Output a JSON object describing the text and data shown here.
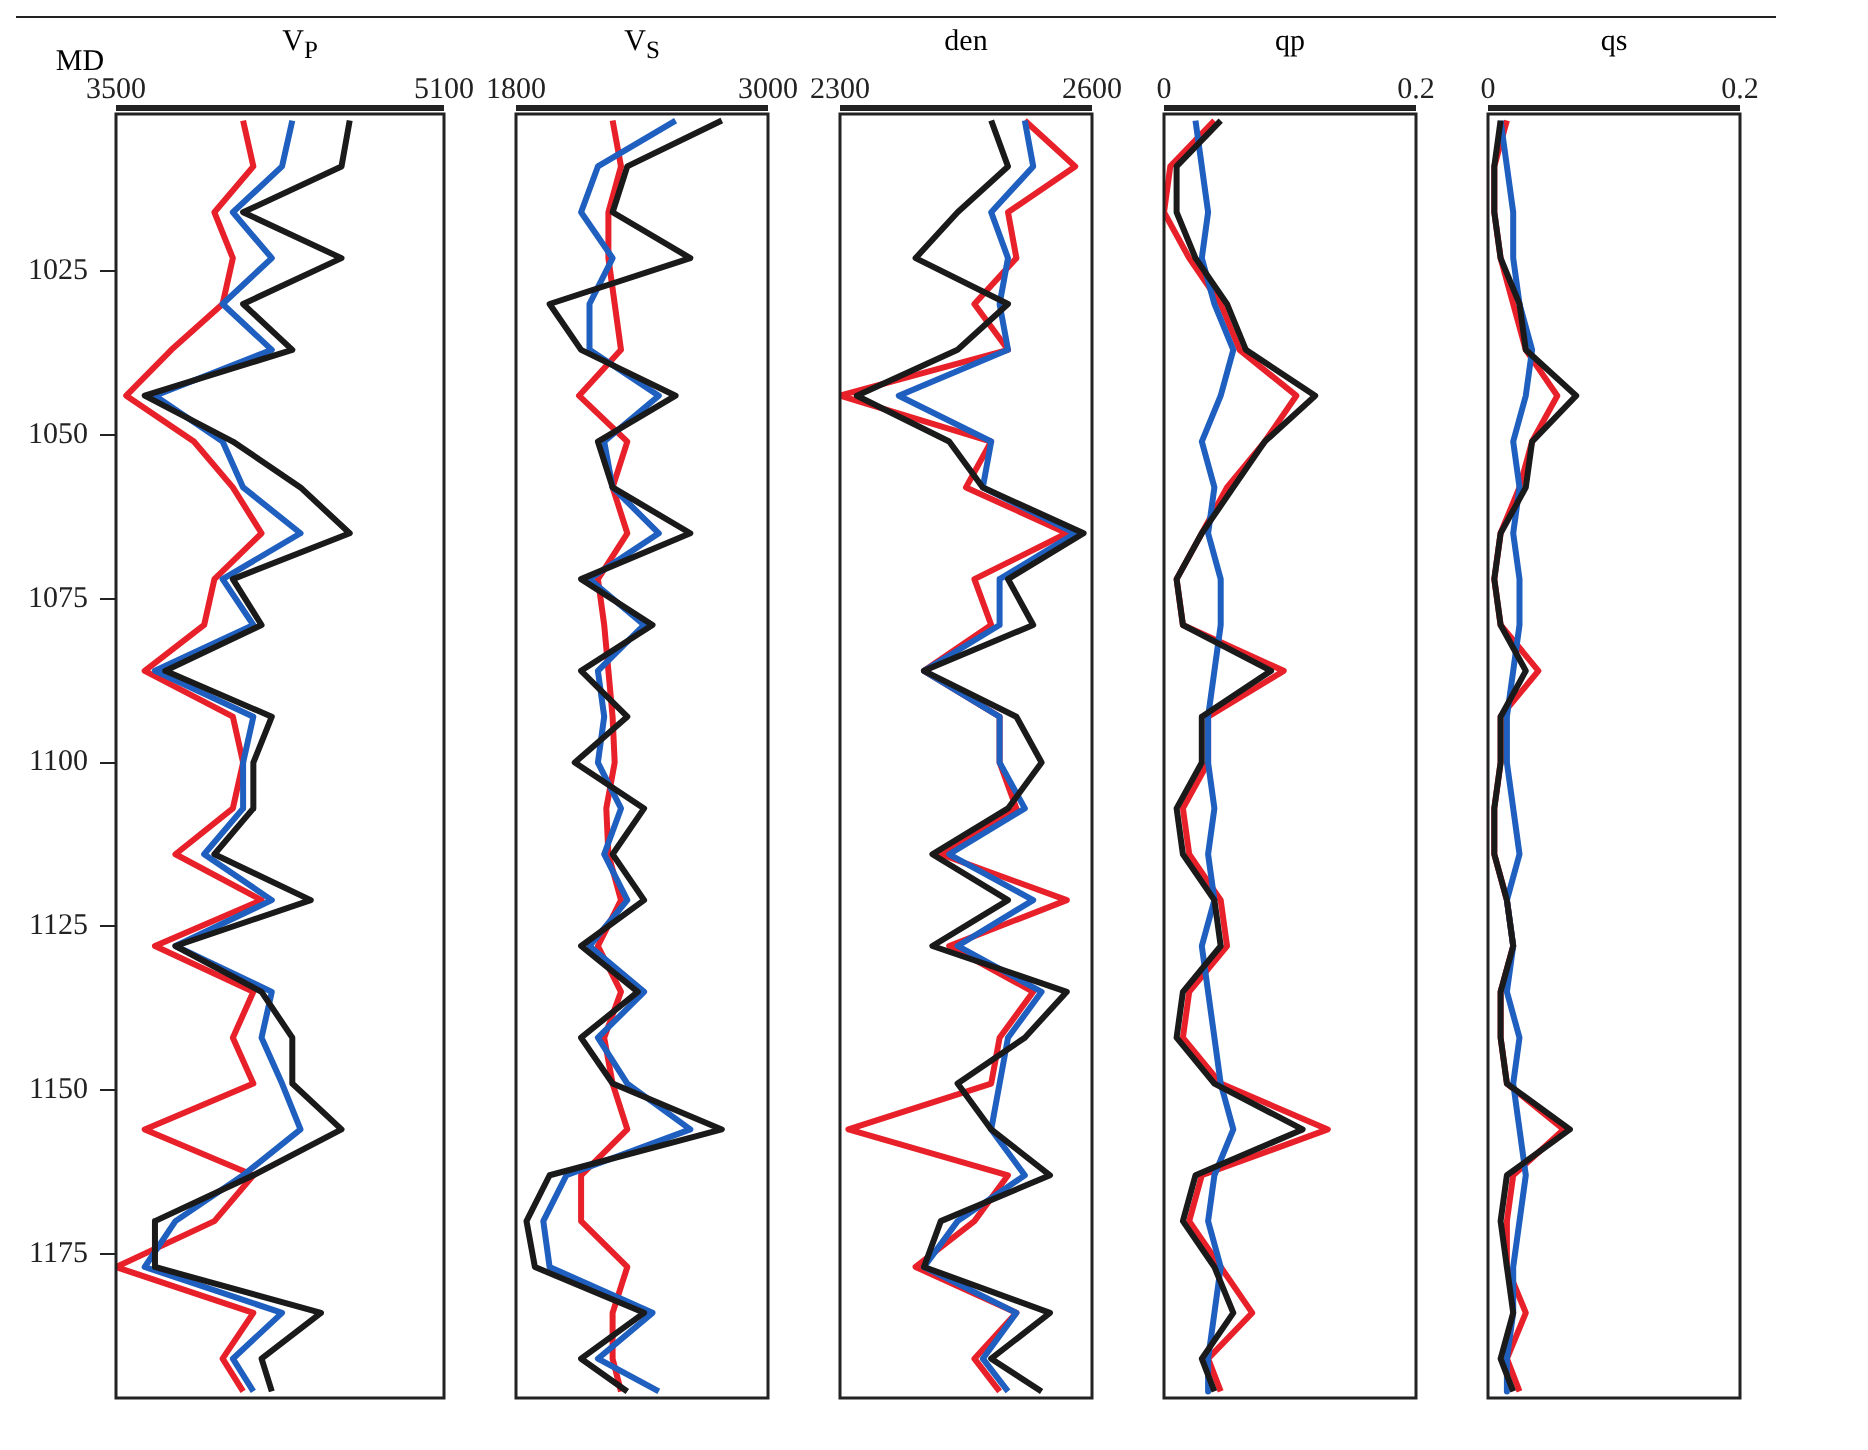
{
  "chart_data": [
    {
      "type": "line",
      "ylabel": "MD",
      "xlabel": "V$_{P}$",
      "xlim": [
        3500,
        5100
      ],
      "xticks": [
        3500,
        5100
      ],
      "ylim": [
        1197,
        1001
      ],
      "yticks": [
        1025,
        1050,
        1075,
        1100,
        1125,
        1150,
        1175
      ],
      "grid": false,
      "legend": false,
      "marker": "none",
      "line_style": "solid",
      "series": [
        {
          "color": "#1a1a1a",
          "values": [
            1002,
            1009,
            1016,
            1023,
            1030,
            1037,
            1044,
            1051,
            1058,
            1065,
            1072,
            1079,
            1086,
            1093,
            1100,
            1107,
            1114,
            1121,
            1128,
            1135,
            1142,
            1149,
            1156,
            1163,
            1170,
            1177,
            1184,
            1191,
            1196
          ],
          "x": [
            4640,
            4600,
            4120,
            4600,
            4120,
            4360,
            3640,
            4070,
            4400,
            4640,
            4070,
            4210,
            3740,
            4260,
            4170,
            4170,
            3980,
            4450,
            3790,
            4210,
            4360,
            4360,
            4600,
            4170,
            3690,
            3690,
            4500,
            4210,
            4260
          ]
        },
        {
          "color": "#1f5fbf",
          "values": [
            1002,
            1009,
            1016,
            1023,
            1030,
            1037,
            1044,
            1051,
            1058,
            1065,
            1072,
            1079,
            1086,
            1093,
            1100,
            1107,
            1114,
            1121,
            1128,
            1135,
            1142,
            1149,
            1156,
            1163,
            1170,
            1177,
            1184,
            1191,
            1196
          ],
          "x": [
            4360,
            4310,
            4070,
            4260,
            4020,
            4260,
            3690,
            4020,
            4120,
            4400,
            4020,
            4170,
            3690,
            4170,
            4120,
            4120,
            3930,
            4260,
            3790,
            4260,
            4210,
            4310,
            4400,
            4120,
            3790,
            3640,
            4310,
            4070,
            4170
          ]
        },
        {
          "color": "#e8202a",
          "values": [
            1002,
            1009,
            1016,
            1023,
            1030,
            1037,
            1044,
            1051,
            1058,
            1065,
            1072,
            1079,
            1086,
            1093,
            1100,
            1107,
            1114,
            1121,
            1128,
            1135,
            1142,
            1149,
            1156,
            1163,
            1170,
            1177,
            1184,
            1191,
            1196
          ],
          "x": [
            4120,
            4170,
            3980,
            4070,
            4020,
            3770,
            3550,
            3880,
            4070,
            4210,
            3980,
            3930,
            3640,
            4070,
            4120,
            4070,
            3790,
            4210,
            3690,
            4170,
            4070,
            4170,
            3640,
            4170,
            3980,
            3500,
            4170,
            4020,
            4120
          ]
        }
      ]
    },
    {
      "type": "line",
      "xlabel": "V$_{S}$",
      "xlim": [
        1800,
        3000
      ],
      "xticks": [
        1800,
        3000
      ],
      "ylim": [
        1197,
        1001
      ],
      "yticks": [
        1025,
        1050,
        1075,
        1100,
        1125,
        1150,
        1175
      ],
      "tick_labels": "x",
      "grid": false,
      "legend": false,
      "marker": "none",
      "line_style": "solid",
      "series": [
        {
          "color": "#1a1a1a",
          "values": [
            1002,
            1009,
            1016,
            1023,
            1030,
            1037,
            1044,
            1051,
            1058,
            1065,
            1072,
            1079,
            1086,
            1093,
            1100,
            1107,
            1114,
            1121,
            1128,
            1135,
            1142,
            1149,
            1156,
            1163,
            1170,
            1177,
            1184,
            1191,
            1196
          ],
          "x": [
            2780,
            2330,
            2260,
            2630,
            1960,
            2110,
            2560,
            2190,
            2260,
            2630,
            2110,
            2450,
            2110,
            2330,
            2080,
            2410,
            2260,
            2410,
            2110,
            2380,
            2110,
            2260,
            2780,
            1960,
            1850,
            1890,
            2410,
            2110,
            2330
          ]
        },
        {
          "color": "#1f5fbf",
          "values": [
            1002,
            1009,
            1016,
            1023,
            1030,
            1037,
            1044,
            1051,
            1058,
            1065,
            1072,
            1079,
            1086,
            1093,
            1100,
            1107,
            1114,
            1121,
            1128,
            1135,
            1142,
            1149,
            1156,
            1163,
            1170,
            1177,
            1184,
            1191,
            1196
          ],
          "x": [
            2560,
            2190,
            2110,
            2260,
            2150,
            2150,
            2480,
            2220,
            2260,
            2480,
            2150,
            2410,
            2190,
            2220,
            2190,
            2300,
            2220,
            2330,
            2150,
            2410,
            2190,
            2330,
            2630,
            2040,
            1930,
            1960,
            2450,
            2190,
            2480
          ]
        },
        {
          "color": "#e8202a",
          "values": [
            1002,
            1009,
            1016,
            1023,
            1030,
            1037,
            1044,
            1051,
            1058,
            1065,
            1072,
            1079,
            1086,
            1093,
            1100,
            1107,
            1114,
            1121,
            1128,
            1135,
            1142,
            1149,
            1156,
            1163,
            1170,
            1177,
            1184,
            1191,
            1196
          ],
          "x": [
            2260,
            2300,
            2240,
            2240,
            2270,
            2300,
            2100,
            2330,
            2260,
            2330,
            2190,
            2220,
            2240,
            2260,
            2270,
            2230,
            2240,
            2300,
            2190,
            2300,
            2220,
            2260,
            2330,
            2110,
            2110,
            2330,
            2260,
            2260,
            2300
          ]
        }
      ]
    },
    {
      "type": "line",
      "xlabel": "den",
      "xlim": [
        2300,
        2600
      ],
      "xticks": [
        2300,
        2600
      ],
      "ylim": [
        1197,
        1001
      ],
      "yticks": [
        1025,
        1050,
        1075,
        1100,
        1125,
        1150,
        1175
      ],
      "tick_labels": "x",
      "grid": false,
      "legend": false,
      "marker": "none",
      "line_style": "solid",
      "series": [
        {
          "color": "#1a1a1a",
          "values": [
            1002,
            1009,
            1016,
            1023,
            1030,
            1037,
            1044,
            1051,
            1058,
            1065,
            1072,
            1079,
            1086,
            1093,
            1100,
            1107,
            1114,
            1121,
            1128,
            1135,
            1142,
            1149,
            1156,
            1163,
            1170,
            1177,
            1184,
            1191,
            1196
          ],
          "x": [
            2480,
            2500,
            2440,
            2390,
            2500,
            2440,
            2320,
            2430,
            2470,
            2590,
            2500,
            2530,
            2400,
            2510,
            2540,
            2500,
            2410,
            2500,
            2410,
            2570,
            2520,
            2440,
            2480,
            2550,
            2420,
            2400,
            2550,
            2480,
            2540
          ]
        },
        {
          "color": "#1f5fbf",
          "values": [
            1002,
            1009,
            1016,
            1023,
            1030,
            1037,
            1044,
            1051,
            1058,
            1065,
            1072,
            1079,
            1086,
            1093,
            1100,
            1107,
            1114,
            1121,
            1128,
            1135,
            1142,
            1149,
            1156,
            1163,
            1170,
            1177,
            1184,
            1191,
            1196
          ],
          "x": [
            2520,
            2530,
            2480,
            2500,
            2490,
            2500,
            2370,
            2480,
            2470,
            2580,
            2490,
            2490,
            2400,
            2490,
            2490,
            2520,
            2430,
            2530,
            2440,
            2540,
            2500,
            2490,
            2480,
            2520,
            2440,
            2400,
            2510,
            2470,
            2500
          ]
        },
        {
          "color": "#e8202a",
          "values": [
            1002,
            1009,
            1016,
            1023,
            1030,
            1037,
            1044,
            1051,
            1058,
            1065,
            1072,
            1079,
            1086,
            1093,
            1100,
            1107,
            1114,
            1121,
            1128,
            1135,
            1142,
            1149,
            1156,
            1163,
            1170,
            1177,
            1184,
            1191,
            1196
          ],
          "x": [
            2520,
            2580,
            2500,
            2510,
            2460,
            2500,
            2300,
            2480,
            2450,
            2570,
            2460,
            2480,
            2400,
            2490,
            2490,
            2510,
            2420,
            2570,
            2430,
            2530,
            2490,
            2480,
            2310,
            2500,
            2460,
            2390,
            2510,
            2460,
            2490
          ]
        }
      ]
    },
    {
      "type": "line",
      "xlabel": "qp",
      "xlim": [
        0,
        0.2
      ],
      "xticks": [
        0,
        0.2
      ],
      "ylim": [
        1197,
        1001
      ],
      "yticks": [
        1025,
        1050,
        1075,
        1100,
        1125,
        1150,
        1175
      ],
      "tick_labels": "x",
      "grid": false,
      "legend": false,
      "marker": "none",
      "line_style": "solid",
      "series": [
        {
          "color": "#1a1a1a",
          "values": [
            1002,
            1009,
            1016,
            1023,
            1030,
            1037,
            1044,
            1051,
            1058,
            1065,
            1072,
            1079,
            1086,
            1093,
            1100,
            1107,
            1114,
            1121,
            1128,
            1135,
            1142,
            1149,
            1156,
            1163,
            1170,
            1177,
            1184,
            1191,
            1196
          ],
          "x": [
            0.045,
            0.01,
            0.01,
            0.025,
            0.05,
            0.065,
            0.12,
            0.08,
            0.055,
            0.03,
            0.01,
            0.015,
            0.085,
            0.03,
            0.03,
            0.01,
            0.015,
            0.04,
            0.045,
            0.015,
            0.01,
            0.04,
            0.11,
            0.025,
            0.015,
            0.04,
            0.055,
            0.03,
            0.04
          ]
        },
        {
          "color": "#1f5fbf",
          "values": [
            1002,
            1009,
            1016,
            1023,
            1030,
            1037,
            1044,
            1051,
            1058,
            1065,
            1072,
            1079,
            1086,
            1093,
            1100,
            1107,
            1114,
            1121,
            1128,
            1135,
            1142,
            1149,
            1156,
            1163,
            1170,
            1177,
            1184,
            1191,
            1196
          ],
          "x": [
            0.025,
            0.03,
            0.035,
            0.03,
            0.04,
            0.055,
            0.045,
            0.03,
            0.04,
            0.035,
            0.045,
            0.045,
            0.04,
            0.035,
            0.035,
            0.04,
            0.035,
            0.04,
            0.03,
            0.035,
            0.04,
            0.045,
            0.055,
            0.04,
            0.035,
            0.045,
            0.04,
            0.035,
            0.035
          ]
        },
        {
          "color": "#e8202a",
          "values": [
            1002,
            1009,
            1016,
            1023,
            1030,
            1037,
            1044,
            1051,
            1058,
            1065,
            1072,
            1079,
            1086,
            1093,
            1100,
            1107,
            1114,
            1121,
            1128,
            1135,
            1142,
            1149,
            1156,
            1163,
            1170,
            1177,
            1184,
            1191,
            1196
          ],
          "x": [
            0.04,
            0.005,
            0,
            0.02,
            0.045,
            0.06,
            0.105,
            0.08,
            0.05,
            0.03,
            0.01,
            0.015,
            0.095,
            0.035,
            0.035,
            0.015,
            0.02,
            0.045,
            0.05,
            0.02,
            0.015,
            0.045,
            0.13,
            0.03,
            0.02,
            0.045,
            0.07,
            0.035,
            0.045
          ]
        }
      ]
    },
    {
      "type": "line",
      "xlabel": "qs",
      "xlim": [
        0,
        0.2
      ],
      "xticks": [
        0,
        0.2
      ],
      "ylim": [
        1197,
        1001
      ],
      "yticks": [
        1025,
        1050,
        1075,
        1100,
        1125,
        1150,
        1175
      ],
      "tick_labels": "x",
      "grid": false,
      "legend": false,
      "marker": "none",
      "line_style": "solid",
      "series": [
        {
          "color": "#1a1a1a",
          "values": [
            1002,
            1009,
            1016,
            1023,
            1030,
            1037,
            1044,
            1051,
            1058,
            1065,
            1072,
            1079,
            1086,
            1093,
            1100,
            1107,
            1114,
            1121,
            1128,
            1135,
            1142,
            1149,
            1156,
            1163,
            1170,
            1177,
            1184,
            1191,
            1196
          ],
          "x": [
            0.01,
            0.005,
            0.005,
            0.01,
            0.025,
            0.03,
            0.07,
            0.035,
            0.03,
            0.01,
            0.005,
            0.01,
            0.03,
            0.01,
            0.01,
            0.005,
            0.005,
            0.015,
            0.02,
            0.01,
            0.01,
            0.015,
            0.065,
            0.015,
            0.01,
            0.015,
            0.02,
            0.01,
            0.02
          ]
        },
        {
          "color": "#1f5fbf",
          "values": [
            1002,
            1009,
            1016,
            1023,
            1030,
            1037,
            1044,
            1051,
            1058,
            1065,
            1072,
            1079,
            1086,
            1093,
            1100,
            1107,
            1114,
            1121,
            1128,
            1135,
            1142,
            1149,
            1156,
            1163,
            1170,
            1177,
            1184,
            1191,
            1196
          ],
          "x": [
            0.01,
            0.015,
            0.02,
            0.02,
            0.025,
            0.035,
            0.03,
            0.02,
            0.025,
            0.02,
            0.025,
            0.025,
            0.02,
            0.015,
            0.015,
            0.02,
            0.025,
            0.015,
            0.02,
            0.015,
            0.025,
            0.02,
            0.025,
            0.03,
            0.025,
            0.02,
            0.02,
            0.015,
            0.015
          ]
        },
        {
          "color": "#e8202a",
          "values": [
            1002,
            1009,
            1016,
            1023,
            1030,
            1037,
            1044,
            1051,
            1058,
            1065,
            1072,
            1079,
            1086,
            1093,
            1100,
            1107,
            1114,
            1121,
            1128,
            1135,
            1142,
            1149,
            1156,
            1163,
            1170,
            1177,
            1184,
            1191,
            1196
          ],
          "x": [
            0.015,
            0.005,
            0.005,
            0.01,
            0.02,
            0.03,
            0.055,
            0.035,
            0.025,
            0.01,
            0.005,
            0.01,
            0.04,
            0.01,
            0.01,
            0.005,
            0.005,
            0.015,
            0.02,
            0.01,
            0.01,
            0.015,
            0.06,
            0.02,
            0.015,
            0.015,
            0.03,
            0.015,
            0.025
          ]
        }
      ]
    }
  ]
}
